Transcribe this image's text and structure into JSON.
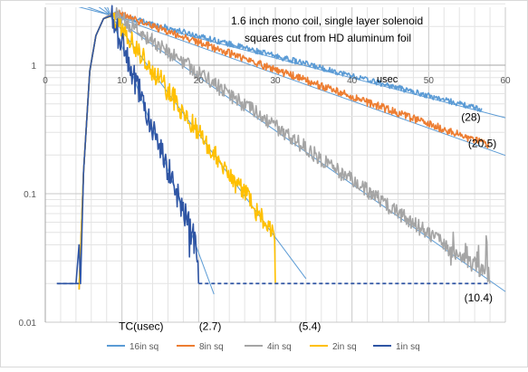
{
  "chart_data": {
    "type": "line",
    "title_lines": [
      "1.6 inch mono coil, single layer solenoid",
      "squares cut from HD aluminum foil"
    ],
    "x_axis": {
      "label": "usec",
      "range": [
        0,
        60
      ],
      "ticks": [
        {
          "value": 0,
          "label": "0"
        },
        {
          "value": 10,
          "label": "10"
        },
        {
          "value": 20,
          "label": "20"
        },
        {
          "value": 30,
          "label": "30"
        },
        {
          "value": 40,
          "label": "40"
        },
        {
          "value": 50,
          "label": "50"
        },
        {
          "value": 60,
          "label": "60"
        }
      ]
    },
    "y_axis": {
      "scale": "log",
      "range": [
        0.01,
        3
      ],
      "ticks": [
        {
          "value": 1,
          "label": "1"
        },
        {
          "value": 0.1,
          "label": "0.1"
        },
        {
          "value": 0.01,
          "label": "0.01"
        }
      ]
    },
    "grid": true,
    "legend_position": "bottom",
    "series": [
      {
        "name": "16in sq",
        "color": "#5B9BD5",
        "tc": 28,
        "peak_x": 9.0,
        "peak_y": 2.5,
        "rise": [
          [
            4.4,
            0.018
          ],
          [
            5.0,
            0.15
          ],
          [
            5.8,
            0.9
          ],
          [
            6.6,
            1.7
          ],
          [
            7.6,
            2.3
          ],
          [
            8.6,
            2.5
          ]
        ],
        "decay_end_x": 57,
        "noise": 0.05,
        "floor": null
      },
      {
        "name": "8in sq",
        "color": "#ED7D31",
        "tc": 20.5,
        "peak_x": 9.2,
        "peak_y": 2.55,
        "rise": [
          [
            4.4,
            0.018
          ],
          [
            5.0,
            0.15
          ],
          [
            5.8,
            0.9
          ],
          [
            6.6,
            1.7
          ],
          [
            7.6,
            2.3
          ],
          [
            8.6,
            2.5
          ]
        ],
        "decay_end_x": 58,
        "noise": 0.07,
        "floor": null
      },
      {
        "name": "4in sq",
        "color": "#A5A5A5",
        "tc": 10.4,
        "peak_x": 9.0,
        "peak_y": 2.5,
        "rise": [
          [
            4.4,
            0.018
          ],
          [
            5.0,
            0.15
          ],
          [
            5.8,
            0.9
          ],
          [
            6.6,
            1.7
          ],
          [
            7.6,
            2.3
          ],
          [
            8.6,
            2.5
          ]
        ],
        "decay_end_x": 58,
        "noise": 0.14,
        "floor": 0.02
      },
      {
        "name": "2in sq",
        "color": "#FFC000",
        "tc": 5.4,
        "peak_x": 8.8,
        "peak_y": 2.4,
        "rise": [
          [
            4.4,
            0.018
          ],
          [
            5.0,
            0.15
          ],
          [
            5.8,
            0.9
          ],
          [
            6.6,
            1.7
          ],
          [
            7.6,
            2.3
          ],
          [
            8.6,
            2.4
          ]
        ],
        "decay_end_x": 30,
        "noise": 0.2,
        "floor": 0.02
      },
      {
        "name": "1in sq",
        "color": "#2F55A4",
        "tc": 2.7,
        "peak_x": 8.6,
        "peak_y": 2.4,
        "rise": [
          [
            1.6,
            0.02
          ],
          [
            4.0,
            0.02
          ],
          [
            4.4,
            0.04
          ],
          [
            4.6,
            0.02
          ],
          [
            5.0,
            0.15
          ],
          [
            5.8,
            0.9
          ],
          [
            6.6,
            1.7
          ],
          [
            7.6,
            2.3
          ],
          [
            8.4,
            2.4
          ]
        ],
        "decay_end_x": 20,
        "noise": 0.25,
        "floor": 0.02
      }
    ],
    "dashed_floor": {
      "y": 0.02,
      "x_start": 20,
      "x_end": 58,
      "color": "#2F55A4"
    },
    "fit_lines": {
      "color": "#5B9BD5",
      "lines": [
        {
          "x0": 8.5,
          "y0": 2.45,
          "tc": 28,
          "x_start": 2,
          "x_end": 60
        },
        {
          "x0": 8.5,
          "y0": 2.45,
          "tc": 20.5,
          "x_start": 2,
          "x_end": 60
        },
        {
          "x0": 8.5,
          "y0": 2.45,
          "tc": 10.4,
          "x_start": 4,
          "x_end": 60
        },
        {
          "x0": 8.5,
          "y0": 2.45,
          "tc": 5.4,
          "x_start": 5,
          "x_end": 34
        },
        {
          "x0": 8.5,
          "y0": 2.45,
          "tc": 2.7,
          "x_start": 6,
          "x_end": 22
        }
      ]
    },
    "annotations": [
      {
        "text": "TC(usec)",
        "x": 12.5,
        "y": 0.0087
      },
      {
        "text": "(2.7)",
        "x": 21.5,
        "y": 0.0087
      },
      {
        "text": "(5.4)",
        "x": 34.5,
        "y": 0.0087
      },
      {
        "text": "(10.4)",
        "x": 56.5,
        "y": 0.0145
      },
      {
        "text": "(20.5)",
        "x": 57.0,
        "y": 0.23
      },
      {
        "text": "(28)",
        "x": 55.5,
        "y": 0.37
      }
    ]
  }
}
